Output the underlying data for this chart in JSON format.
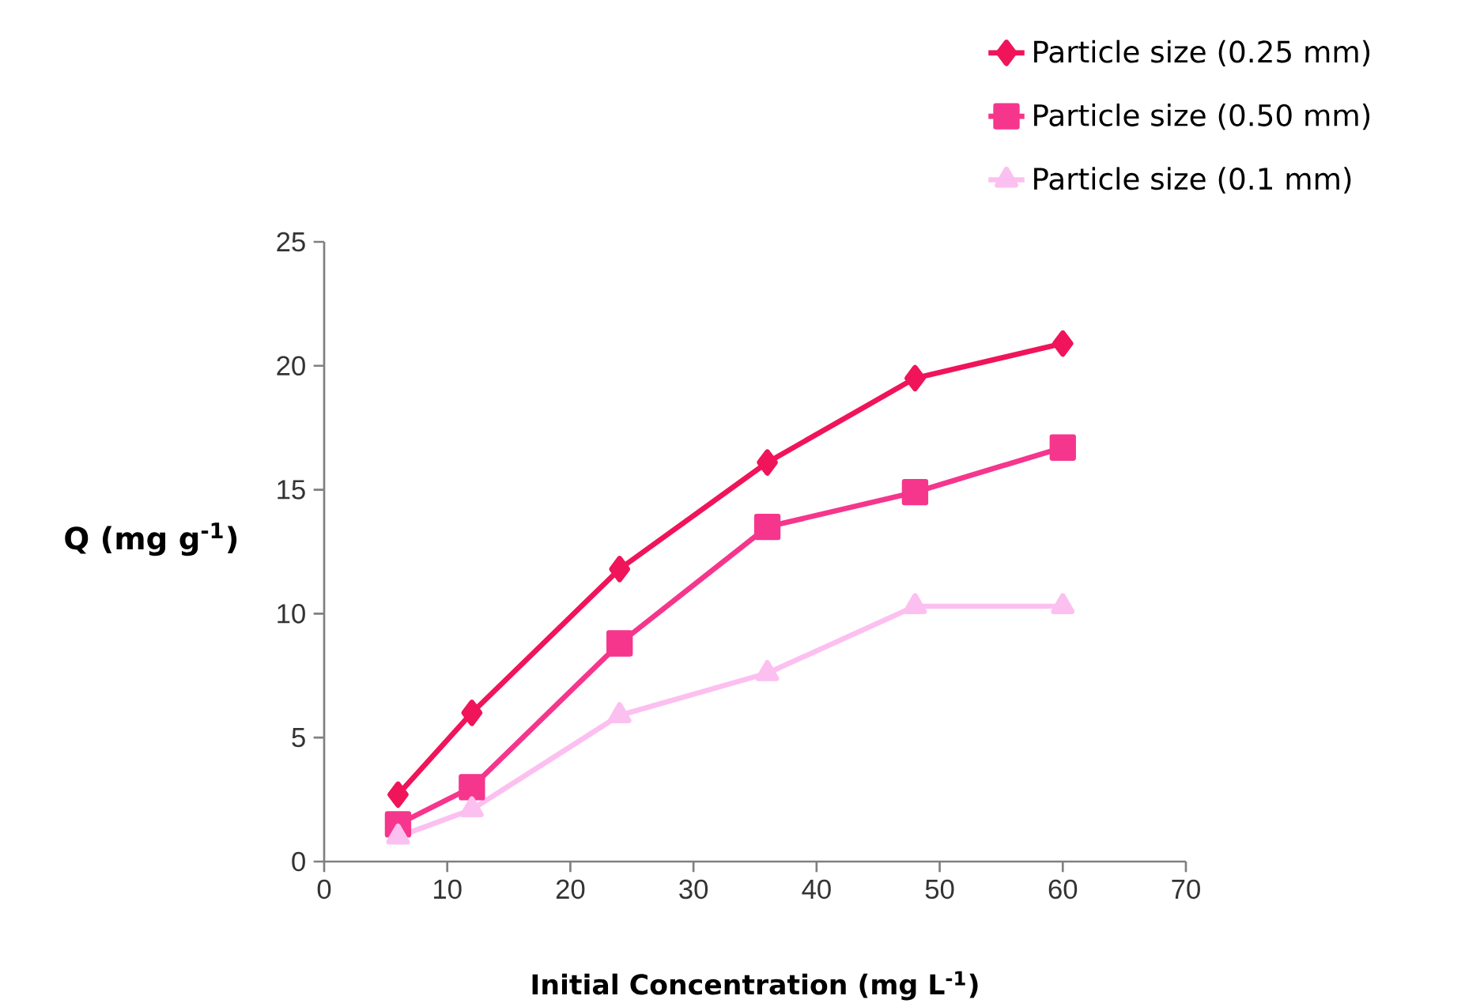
{
  "chart_data": {
    "type": "line",
    "xlabel": "Initial Concentration (mg L$^{-1}$)",
    "ylabel": "Q (mg g$^{-1}$)",
    "x": [
      6,
      12,
      24,
      36,
      48,
      60
    ],
    "series": [
      {
        "name": "Particle size (0.25 mm)",
        "color": "#f0145a",
        "marker": "diamond",
        "values": [
          2.7,
          6.0,
          11.8,
          16.1,
          19.5,
          20.9
        ]
      },
      {
        "name": "Particle size (0.50 mm)",
        "color": "#f5368c",
        "marker": "square",
        "values": [
          1.5,
          3.0,
          8.8,
          13.5,
          14.9,
          16.7
        ]
      },
      {
        "name": "Particle size (0.1 mm)",
        "color": "#fcc0f0",
        "marker": "triangle",
        "values": [
          1.0,
          2.1,
          5.9,
          7.6,
          10.3,
          10.3
        ]
      }
    ],
    "xlim": [
      0,
      70
    ],
    "ylim": [
      0,
      25
    ],
    "xticks": [
      0,
      10,
      20,
      30,
      40,
      50,
      60,
      70
    ],
    "yticks": [
      0,
      5,
      10,
      15,
      20,
      25
    ],
    "grid": false,
    "legend": "top right",
    "line_style": "solid"
  }
}
